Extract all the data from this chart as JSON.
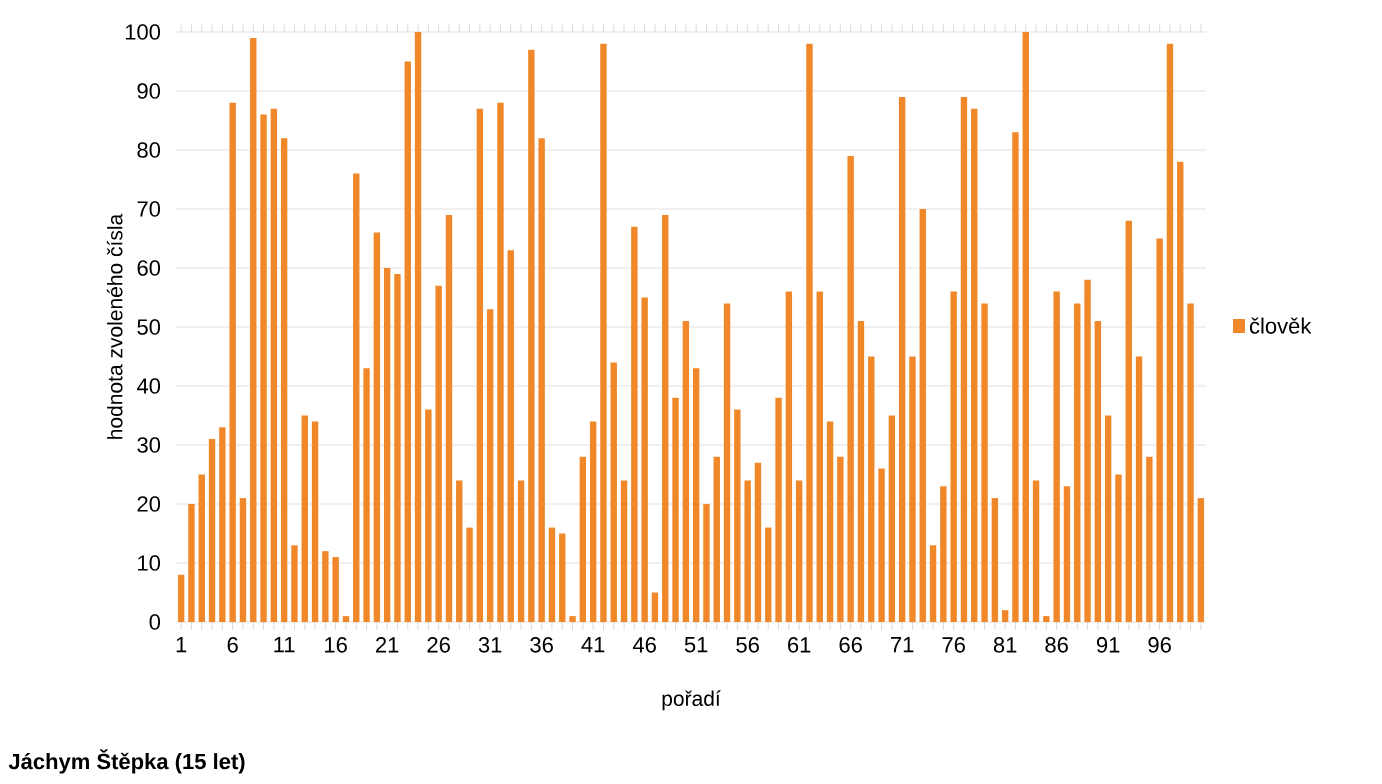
{
  "chart_data": {
    "type": "bar",
    "categories": [
      "1",
      null,
      null,
      null,
      null,
      "6",
      null,
      null,
      null,
      null,
      "11",
      null,
      null,
      null,
      null,
      "16",
      null,
      null,
      null,
      null,
      "21",
      null,
      null,
      null,
      null,
      "26",
      null,
      null,
      null,
      null,
      "31",
      null,
      null,
      null,
      null,
      "36",
      null,
      null,
      null,
      null,
      "41",
      null,
      null,
      null,
      null,
      "46",
      null,
      null,
      null,
      null,
      "51",
      null,
      null,
      null,
      null,
      "56",
      null,
      null,
      null,
      null,
      "61",
      null,
      null,
      null,
      null,
      "66",
      null,
      null,
      null,
      null,
      "71",
      null,
      null,
      null,
      null,
      "76",
      null,
      null,
      null,
      null,
      "81",
      null,
      null,
      null,
      null,
      "86",
      null,
      null,
      null,
      null,
      "91",
      null,
      null,
      null,
      null,
      "96",
      null,
      null,
      null,
      null
    ],
    "series": [
      {
        "name": "člověk",
        "color": "#f0882a",
        "values": [
          8,
          20,
          25,
          31,
          33,
          88,
          21,
          99,
          86,
          87,
          82,
          13,
          35,
          34,
          12,
          11,
          1,
          76,
          43,
          66,
          60,
          59,
          95,
          100,
          36,
          57,
          69,
          24,
          16,
          87,
          53,
          88,
          63,
          24,
          97,
          82,
          16,
          15,
          1,
          28,
          34,
          98,
          44,
          24,
          67,
          55,
          5,
          69,
          38,
          51,
          43,
          20,
          28,
          54,
          36,
          24,
          27,
          16,
          38,
          56,
          24,
          98,
          56,
          34,
          28,
          79,
          51,
          45,
          26,
          35,
          89,
          45,
          70,
          13,
          23,
          56,
          89,
          87,
          54,
          21,
          2,
          83,
          100,
          24,
          1,
          56,
          23,
          54,
          58,
          51,
          35,
          25,
          68,
          45,
          28,
          65,
          98,
          78,
          54,
          21
        ]
      }
    ],
    "xlabel": "pořadí",
    "ylabel": "hodnota zvoleného čísla",
    "ylim": [
      0,
      100
    ],
    "yticks": [
      0,
      10,
      20,
      30,
      40,
      50,
      60,
      70,
      80,
      90,
      100
    ],
    "grid": "y",
    "legend": "right",
    "annotations": [
      "Jáchym Štěpka (15 let)"
    ]
  }
}
